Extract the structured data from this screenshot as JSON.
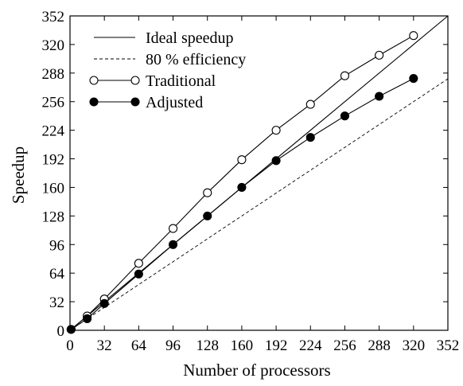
{
  "chart_data": {
    "type": "line",
    "title": "",
    "xlabel": "Number of processors",
    "ylabel": "Speedup",
    "xlim": [
      0,
      352
    ],
    "ylim": [
      0,
      352
    ],
    "x_ticks": [
      "0",
      "32",
      "64",
      "96",
      "128",
      "160",
      "192",
      "224",
      "256",
      "288",
      "320",
      "352"
    ],
    "y_ticks": [
      "0",
      "32",
      "64",
      "96",
      "128",
      "160",
      "192",
      "224",
      "256",
      "288",
      "320",
      "352"
    ],
    "grid": false,
    "legend_position": "top-left",
    "series": [
      {
        "name": "Ideal speedup",
        "style": "solid",
        "marker": "none",
        "x": [
          0,
          352
        ],
        "y": [
          0,
          352
        ]
      },
      {
        "name": "80 % efficiency",
        "style": "dashed",
        "marker": "none",
        "x": [
          0,
          352
        ],
        "y": [
          0,
          281.6
        ]
      },
      {
        "name": "Traditional",
        "style": "solid",
        "marker": "open-circle",
        "x": [
          1,
          16,
          32,
          64,
          96,
          128,
          160,
          192,
          224,
          256,
          288,
          320
        ],
        "y": [
          1,
          16,
          35,
          75,
          114,
          154,
          191,
          224,
          253,
          285,
          308,
          330
        ]
      },
      {
        "name": "Adjusted",
        "style": "solid",
        "marker": "filled-circle",
        "x": [
          1,
          16,
          32,
          64,
          96,
          128,
          160,
          192,
          224,
          256,
          288,
          320
        ],
        "y": [
          1,
          13,
          30,
          63,
          96,
          128,
          160,
          190,
          216,
          240,
          262,
          282
        ]
      }
    ]
  }
}
